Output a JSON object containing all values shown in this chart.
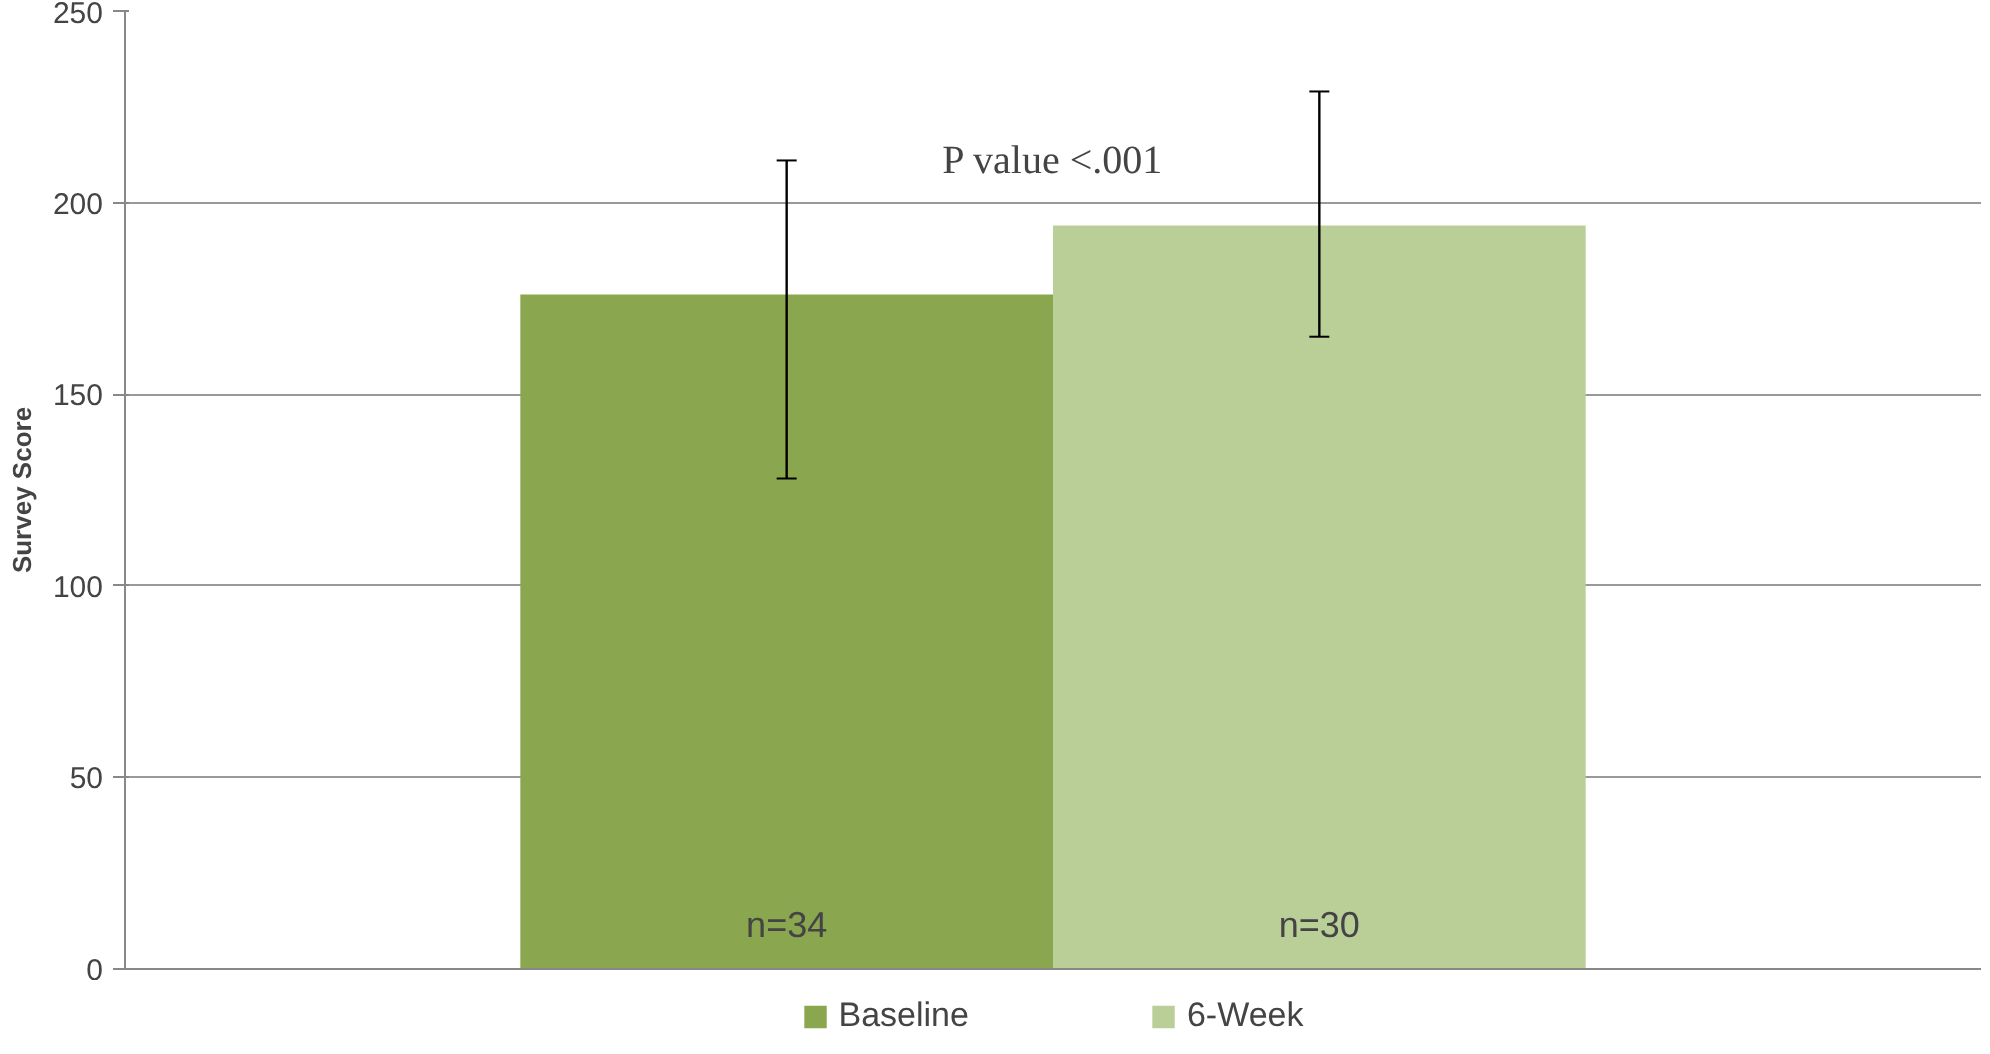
{
  "chart_data": {
    "type": "bar",
    "ylabel": "Survey Score",
    "categories": [
      null
    ],
    "series": [
      {
        "name": "Baseline",
        "color": "#8aa64f",
        "values": [
          176
        ],
        "errors": [
          [
            128,
            211
          ]
        ]
      },
      {
        "name": "6-Week",
        "color": "#bacf97",
        "values": [
          194
        ],
        "errors": [
          [
            165,
            229
          ]
        ]
      }
    ],
    "ylim": [
      0,
      250
    ],
    "yticks": [
      0,
      50,
      100,
      150,
      200,
      250
    ],
    "grid": "y",
    "legend": "bottom",
    "annotations": [
      "P value <.001",
      "n=34",
      "n=30"
    ]
  }
}
